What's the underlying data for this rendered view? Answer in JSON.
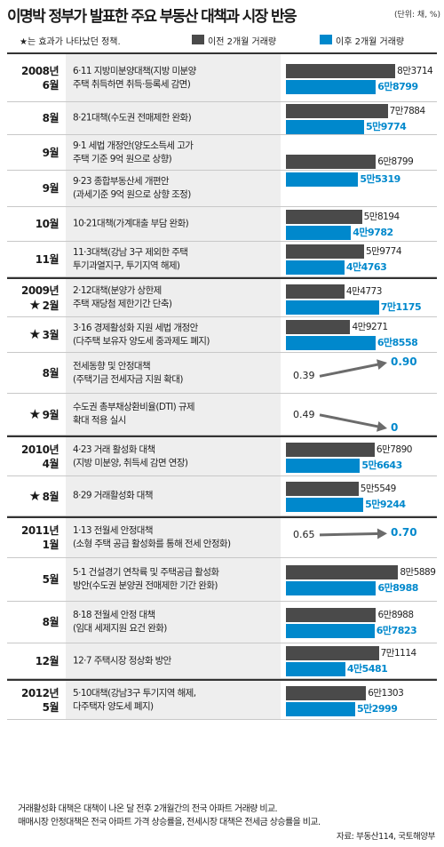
{
  "header": {
    "title": "이명박 정부가 발표한 주요 부동산 대책과 시장 반응",
    "unit": "(단위: 채, %)"
  },
  "legend": {
    "star_note": "★는 효과가 나타났던 정책.",
    "before_label": "이전 2개월 거래량",
    "after_label": "이후 2개월 거래량",
    "before_color": "#4a4a4a",
    "after_color": "#0088cc"
  },
  "chart_data": {
    "type": "bar",
    "orientation": "horizontal",
    "title": "이명박 정부가 발표한 주요 부동산 대책과 시장 반응",
    "series": [
      {
        "name": "이전 2개월 거래량"
      },
      {
        "name": "이후 2개월 거래량"
      }
    ],
    "xlim": [
      0,
      87000
    ],
    "rows": [
      {
        "year": "2008년",
        "month": "6월",
        "star": false,
        "lines": [
          "6·11 지방미분양대책(지방 미분양",
          "주택 취득하면 취득·등록세 감면)"
        ],
        "kind": "volume",
        "before": 83714,
        "after": 68799,
        "before_label": "8만3714",
        "after_label": "6만8799",
        "year_start": true
      },
      {
        "year": "",
        "month": "8월",
        "star": false,
        "lines": [
          "8·21대책(수도권 전매제한 완화)"
        ],
        "kind": "volume",
        "before": 77884,
        "after": 59774,
        "before_label": "7만7884",
        "after_label": "5만9774",
        "year_start": false
      },
      {
        "year": "",
        "month": "9월",
        "star": false,
        "lines": [
          "9·1 세법 개정안(양도소득세 고가",
          "주택 기준 9억 원으로 상향)"
        ],
        "kind": "volume",
        "before": 68799,
        "after": 55319,
        "before_label": "6만8799",
        "after_label": "5만5319",
        "year_start": false,
        "pair_group": "a",
        "pair_pos": "top"
      },
      {
        "year": "",
        "month": "9월",
        "star": false,
        "lines": [
          "9·23 종합부동산세 개편안",
          "(과세기준 9억 원으로 상향 조정)"
        ],
        "kind": "shared",
        "year_start": false,
        "pair_group": "a",
        "pair_pos": "bottom"
      },
      {
        "year": "",
        "month": "10월",
        "star": false,
        "lines": [
          "10·21대책(가계대출 부담 완화)"
        ],
        "kind": "volume",
        "before": 58194,
        "after": 49782,
        "before_label": "5만8194",
        "after_label": "4만9782",
        "year_start": false
      },
      {
        "year": "",
        "month": "11월",
        "star": false,
        "lines": [
          "11·3대책(강남 3구 제외한 주택",
          "투기과열지구, 투기지역 해제)"
        ],
        "kind": "volume",
        "before": 59774,
        "after": 44763,
        "before_label": "5만9774",
        "after_label": "4만4763",
        "year_start": false
      },
      {
        "year": "2009년",
        "month": "2월",
        "star": true,
        "lines": [
          "2·12대책(분양가 상한제",
          "주택 재당첨 제한기간 단축)"
        ],
        "kind": "volume",
        "before": 44773,
        "after": 71175,
        "before_label": "4만4773",
        "after_label": "7만1175",
        "year_start": true
      },
      {
        "year": "",
        "month": "3월",
        "star": true,
        "lines": [
          "3·16 경제활성화 지원 세법 개정안",
          "(다주택 보유자 양도세 중과제도 폐지)"
        ],
        "kind": "volume",
        "before": 49271,
        "after": 68558,
        "before_label": "4만9271",
        "after_label": "6만8558",
        "year_start": false
      },
      {
        "year": "",
        "month": "8월",
        "star": false,
        "lines": [
          "전세동향 및 안정대책",
          "(주택기금 전세자금 지원 확대)"
        ],
        "kind": "rate",
        "start": 0.39,
        "end": 0.9,
        "start_label": "0.39",
        "end_label": "0.90",
        "year_start": false
      },
      {
        "year": "",
        "month": "9월",
        "star": true,
        "lines": [
          "수도권 총부채상환비율(DTI) 규제",
          "확대 적용 실시"
        ],
        "kind": "rate",
        "start": 0.49,
        "end": 0,
        "start_label": "0.49",
        "end_label": "0",
        "year_start": false
      },
      {
        "year": "2010년",
        "month": "4월",
        "star": false,
        "lines": [
          "4·23 거래 활성화 대책",
          "(지방 미분양, 취득세 감면 연장)"
        ],
        "kind": "volume",
        "before": 67890,
        "after": 56643,
        "before_label": "6만7890",
        "after_label": "5만6643",
        "year_start": true
      },
      {
        "year": "",
        "month": "8월",
        "star": true,
        "lines": [
          "8·29 거래활성화 대책"
        ],
        "kind": "volume",
        "before": 55549,
        "after": 59244,
        "before_label": "5만5549",
        "after_label": "5만9244",
        "year_start": false
      },
      {
        "year": "2011년",
        "month": "1월",
        "star": false,
        "lines": [
          "1·13 전월세 안정대책",
          "(소형 주택 공급 활성화를 통해 전세 안정화)"
        ],
        "kind": "rate",
        "start": 0.65,
        "end": 0.7,
        "start_label": "0.65",
        "end_label": "0.70",
        "year_start": true
      },
      {
        "year": "",
        "month": "5월",
        "star": false,
        "lines": [
          "5·1 건설경기 연착륙 및 주택공급 활성화",
          "방안(수도권 분양권 전매제한 기간 완화)"
        ],
        "kind": "volume",
        "before": 85889,
        "after": 68988,
        "before_label": "8만5889",
        "after_label": "6만8988",
        "year_start": false
      },
      {
        "year": "",
        "month": "8월",
        "star": false,
        "lines": [
          "8·18 전월세 안정 대책",
          "(임대 세제지원 요건 완화)"
        ],
        "kind": "volume",
        "before": 68988,
        "after": 67823,
        "before_label": "6만8988",
        "after_label": "6만7823",
        "year_start": false
      },
      {
        "year": "",
        "month": "12월",
        "star": false,
        "lines": [
          "12·7 주택시장 정상화 방안"
        ],
        "kind": "volume",
        "before": 71114,
        "after": 45481,
        "before_label": "7만1114",
        "after_label": "4만5481",
        "year_start": false
      },
      {
        "year": "2012년",
        "month": "5월",
        "star": false,
        "lines": [
          "5·10대책(강남3구 투기지역 해제,",
          "다주택자 양도세 폐지)"
        ],
        "kind": "volume",
        "before": 61303,
        "after": 52999,
        "before_label": "6만1303",
        "after_label": "5만2999",
        "year_start": true
      }
    ]
  },
  "footnote": {
    "line1": "거래활성화 대책은 대책이 나온 달 전후 2개월간의 전국 아파트 거래량 비교.",
    "line2": "매매시장 안정대책은 전국 아파트 가격 상승률을, 전세시장 대책은 전세금 상승률을 비교.",
    "source": "자료: 부동산114, 국토해양부"
  }
}
